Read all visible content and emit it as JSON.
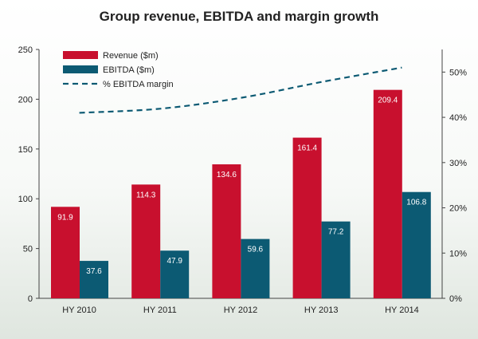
{
  "chart_data": {
    "type": "bar",
    "title": "Group revenue, EBITDA and margin growth",
    "categories": [
      "HY 2010",
      "HY 2011",
      "HY 2012",
      "HY 2013",
      "HY 2014"
    ],
    "series": [
      {
        "name": "Revenue ($m)",
        "type": "bar",
        "axis": "left",
        "color": "#c8102e",
        "values": [
          91.9,
          114.3,
          134.6,
          161.4,
          209.4
        ],
        "labels": [
          "91.9",
          "114.3",
          "134.6",
          "161.4",
          "209.4"
        ]
      },
      {
        "name": "EBITDA ($m)",
        "type": "bar",
        "axis": "left",
        "color": "#0c5a73",
        "values": [
          37.6,
          47.9,
          59.6,
          77.2,
          106.8
        ],
        "labels": [
          "37.6",
          "47.9",
          "59.6",
          "77.2",
          "106.8"
        ]
      },
      {
        "name": "% EBITDA margin",
        "type": "line",
        "style": "dashed",
        "axis": "right",
        "color": "#0c5a73",
        "values": [
          41,
          41.9,
          44.3,
          47.8,
          51
        ]
      }
    ],
    "y_left": {
      "range": [
        0,
        250
      ],
      "ticks": [
        "0",
        "50",
        "100",
        "150",
        "200",
        "250"
      ]
    },
    "y_right": {
      "range": [
        0,
        55
      ],
      "ticks": [
        "0%",
        "10%",
        "20%",
        "30%",
        "40%",
        "50%"
      ],
      "tick_values": [
        0,
        10,
        20,
        30,
        40,
        50
      ]
    },
    "grid": false,
    "legend": "top-left"
  }
}
